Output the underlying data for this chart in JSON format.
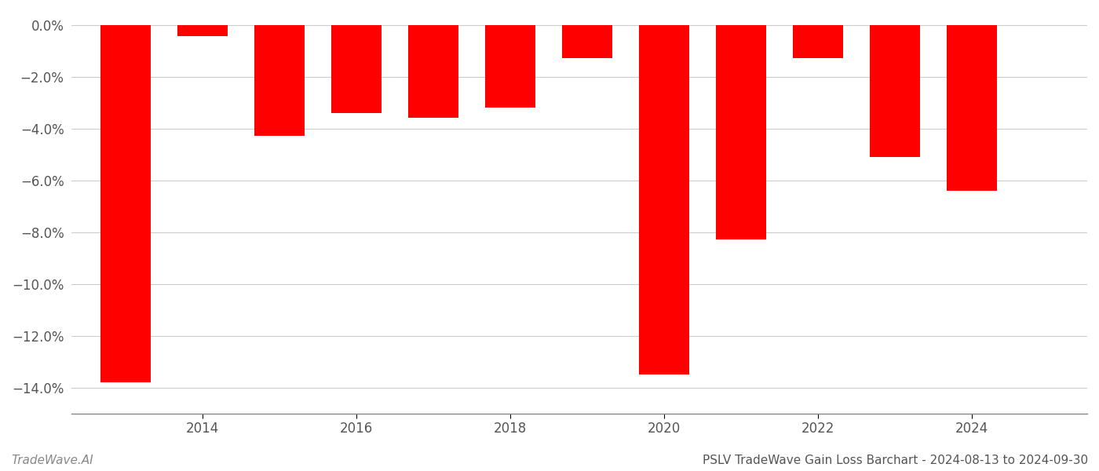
{
  "years": [
    2013,
    2014,
    2015,
    2016,
    2017,
    2018,
    2019,
    2020,
    2021,
    2022,
    2023,
    2024
  ],
  "values": [
    -13.8,
    -0.45,
    -4.3,
    -3.4,
    -3.6,
    -3.2,
    -1.3,
    -13.5,
    -8.3,
    -1.3,
    -5.1,
    -6.4
  ],
  "bar_color": "#ff0000",
  "title": "PSLV TradeWave Gain Loss Barchart - 2024-08-13 to 2024-09-30",
  "watermark": "TradeWave.AI",
  "ylim_min": -15.0,
  "ylim_max": 0.5,
  "yticks": [
    0.0,
    -2.0,
    -4.0,
    -6.0,
    -8.0,
    -10.0,
    -12.0,
    -14.0
  ],
  "ytick_labels": [
    "0.0%",
    "−2.0%",
    "−4.0%",
    "−6.0%",
    "−8.0%",
    "−10.0%",
    "−12.0%",
    "−14.0%"
  ],
  "xtick_years": [
    2014,
    2016,
    2018,
    2020,
    2022,
    2024
  ],
  "xlim_min": 2012.3,
  "xlim_max": 2025.5,
  "background_color": "#ffffff",
  "grid_color": "#cccccc",
  "bar_width": 0.65,
  "title_fontsize": 11,
  "watermark_fontsize": 11,
  "tick_fontsize": 12
}
